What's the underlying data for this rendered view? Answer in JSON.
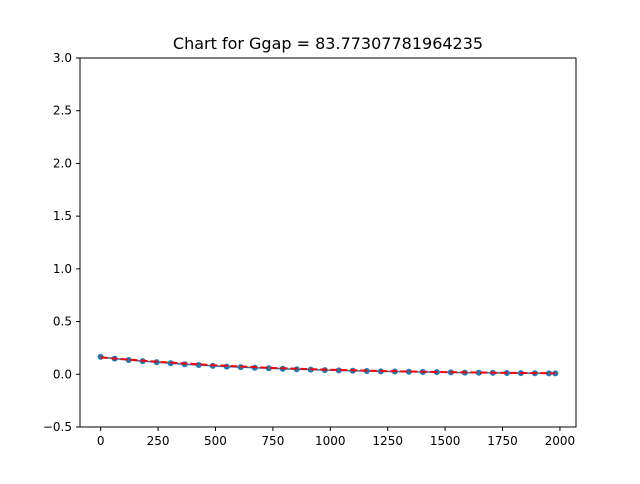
{
  "chart_data": {
    "type": "scatter",
    "title": "Chart for Ggap = 83.77307781964235",
    "xlabel": "",
    "ylabel": "",
    "xlim": [
      -90,
      2070
    ],
    "ylim": [
      -0.5,
      3.0
    ],
    "xticks": [
      0,
      250,
      500,
      750,
      1000,
      1250,
      1500,
      1750,
      2000
    ],
    "xtick_labels": [
      "0",
      "250",
      "500",
      "750",
      "1000",
      "1250",
      "1500",
      "1750",
      "2000"
    ],
    "yticks": [
      -0.5,
      0.0,
      0.5,
      1.0,
      1.5,
      2.0,
      2.5,
      3.0
    ],
    "ytick_labels": [
      "−0.5",
      "0.0",
      "0.5",
      "1.0",
      "1.5",
      "2.0",
      "2.5",
      "3.0"
    ],
    "grid": false,
    "series": [
      {
        "kind": "points",
        "color": "#1f77b4",
        "x": [
          0,
          61,
          122,
          183,
          244,
          305,
          366,
          427,
          488,
          549,
          610,
          671,
          732,
          793,
          854,
          915,
          976,
          1037,
          1098,
          1159,
          1220,
          1281,
          1342,
          1403,
          1464,
          1525,
          1586,
          1647,
          1708,
          1769,
          1830,
          1891,
          1952,
          1980
        ],
        "y": [
          0.165,
          0.148,
          0.135,
          0.125,
          0.115,
          0.105,
          0.095,
          0.088,
          0.08,
          0.073,
          0.068,
          0.062,
          0.057,
          0.052,
          0.048,
          0.044,
          0.04,
          0.037,
          0.034,
          0.031,
          0.028,
          0.026,
          0.024,
          0.022,
          0.02,
          0.018,
          0.016,
          0.015,
          0.013,
          0.012,
          0.011,
          0.01,
          0.009,
          0.009
        ]
      },
      {
        "kind": "fit",
        "color": "#ff0000",
        "linestyle": "dashed",
        "x": [
          0,
          250,
          500,
          750,
          1000,
          1250,
          1500,
          1750,
          1980
        ],
        "y": [
          0.16,
          0.118,
          0.085,
          0.06,
          0.043,
          0.03,
          0.021,
          0.014,
          0.01
        ]
      }
    ]
  }
}
